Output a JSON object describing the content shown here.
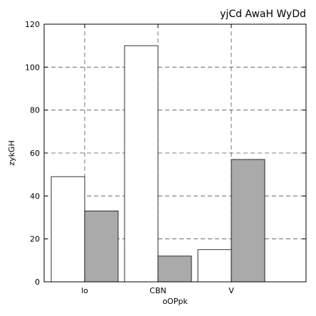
{
  "chart_data": {
    "type": "bar",
    "title": "yjCd AwaH WyDd",
    "xlabel": "oOPpk",
    "ylabel": "zykGH",
    "categories": [
      "lo",
      "CBN",
      "V"
    ],
    "series": [
      {
        "values": [
          49,
          110,
          15
        ],
        "color": "#ffffff"
      },
      {
        "values": [
          33,
          12,
          57
        ],
        "color": "#aaaaaa"
      }
    ],
    "ylim": [
      0,
      120
    ],
    "yticks": [
      0,
      20,
      40,
      60,
      80,
      100,
      120
    ],
    "grid": true
  }
}
